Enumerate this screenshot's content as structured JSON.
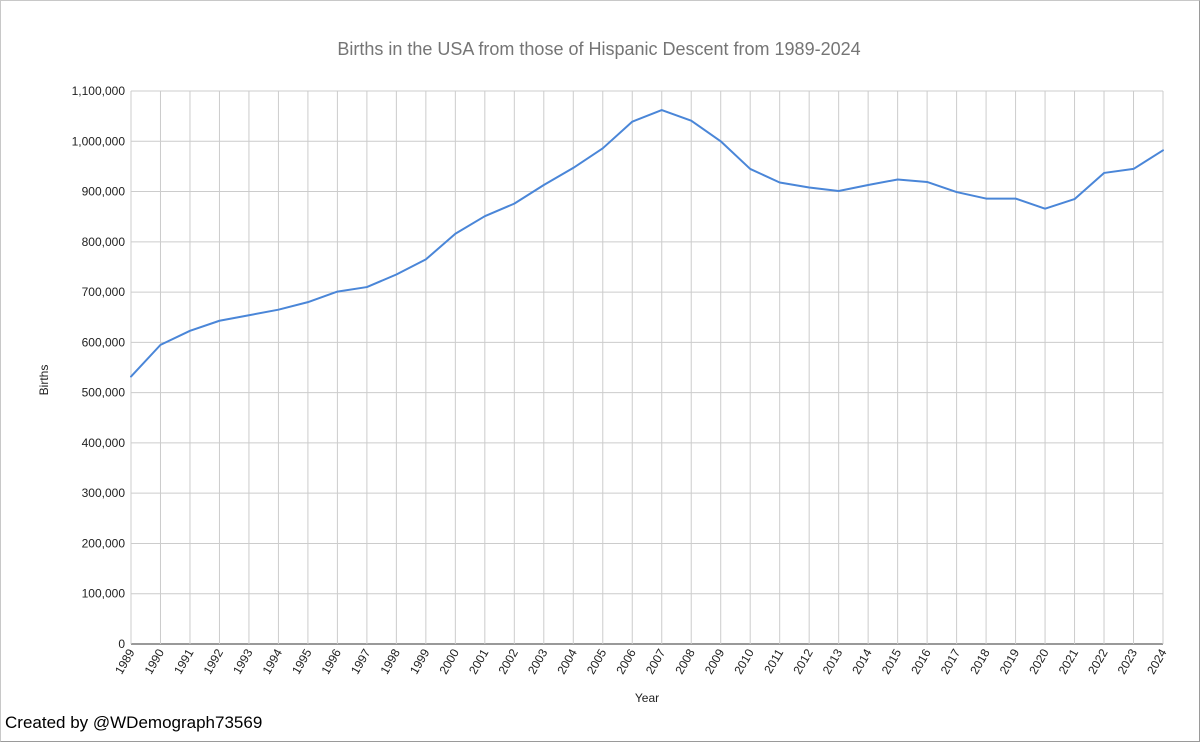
{
  "chart_data": {
    "type": "line",
    "title": "Births in the USA from those of Hispanic Descent from 1989-2024",
    "xlabel": "Year",
    "ylabel": "Births",
    "ylim": [
      0,
      1100000
    ],
    "yticks": [
      0,
      100000,
      200000,
      300000,
      400000,
      500000,
      600000,
      700000,
      800000,
      900000,
      1000000,
      1100000
    ],
    "ytick_labels": [
      "0",
      "100,000",
      "200,000",
      "300,000",
      "400,000",
      "500,000",
      "600,000",
      "700,000",
      "800,000",
      "900,000",
      "1,000,000",
      "1,100,000"
    ],
    "grid": true,
    "color": "#4a86d8",
    "categories": [
      "1989",
      "1990",
      "1991",
      "1992",
      "1993",
      "1994",
      "1995",
      "1996",
      "1997",
      "1998",
      "1999",
      "2000",
      "2001",
      "2002",
      "2003",
      "2004",
      "2005",
      "2006",
      "2007",
      "2008",
      "2009",
      "2010",
      "2011",
      "2012",
      "2013",
      "2014",
      "2015",
      "2016",
      "2017",
      "2018",
      "2019",
      "2020",
      "2021",
      "2022",
      "2023",
      "2024"
    ],
    "series": [
      {
        "name": "Births",
        "values": [
          532000,
          595000,
          623000,
          643000,
          654000,
          665000,
          680000,
          701000,
          710000,
          735000,
          765000,
          816000,
          851000,
          876000,
          913000,
          947000,
          986000,
          1039000,
          1062000,
          1041000,
          1000000,
          945000,
          918000,
          908000,
          901000,
          913000,
          924000,
          919000,
          899000,
          886000,
          886000,
          866000,
          885000,
          937000,
          945000,
          982000
        ]
      }
    ]
  },
  "footer": {
    "credit": "Created by @WDemograph73569"
  }
}
